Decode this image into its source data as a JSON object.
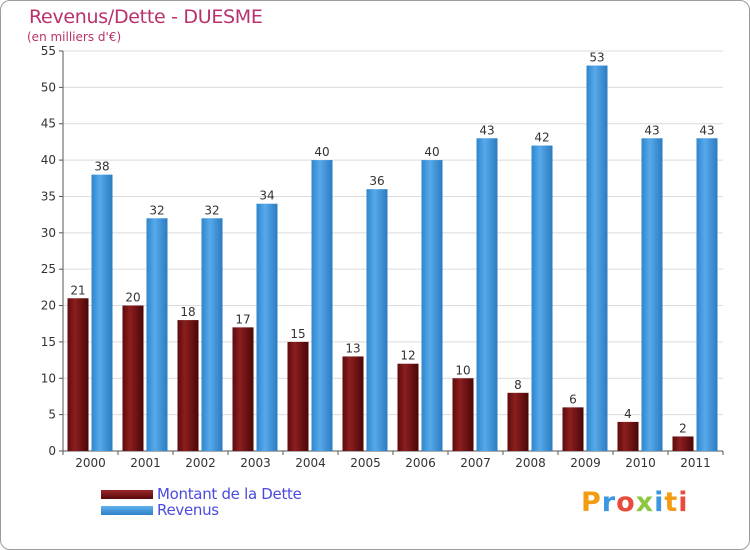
{
  "header": {
    "title": "Revenus/Dette - DUESME",
    "subtitle": "(en milliers d'€)"
  },
  "legend": {
    "items": [
      {
        "label": "Montant de la Dette",
        "color": "#7a0f10"
      },
      {
        "label": "Revenus",
        "color": "#3a97e0"
      }
    ]
  },
  "logo": {
    "text": "Proxiti",
    "colors": [
      "#f39c12",
      "#3a97e0",
      "#e74c3c",
      "#8dc63f",
      "#3a97e0",
      "#f39c12",
      "#e74c3c"
    ]
  },
  "chart_data": {
    "type": "bar",
    "categories": [
      "2000",
      "2001",
      "2002",
      "2003",
      "2004",
      "2005",
      "2006",
      "2007",
      "2008",
      "2009",
      "2010",
      "2011"
    ],
    "series": [
      {
        "name": "Montant de la Dette",
        "color": "#7a0f10",
        "values": [
          21,
          20,
          18,
          17,
          15,
          13,
          12,
          10,
          8,
          6,
          4,
          2
        ]
      },
      {
        "name": "Revenus",
        "color": "#3a97e0",
        "values": [
          38,
          32,
          32,
          34,
          40,
          36,
          40,
          43,
          42,
          53,
          43,
          43
        ]
      }
    ],
    "ylim": [
      0,
      55
    ],
    "yticks": [
      0,
      5,
      10,
      15,
      20,
      25,
      30,
      35,
      40,
      45,
      50,
      55
    ],
    "grid": true
  }
}
